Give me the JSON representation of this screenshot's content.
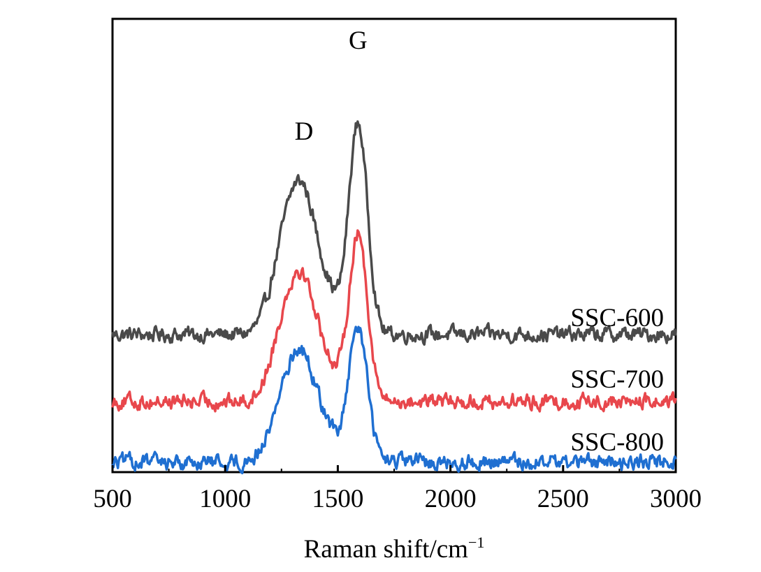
{
  "chart_data": {
    "type": "line",
    "title": "",
    "xlabel": "Raman shift/cm",
    "xlabel_superscript": "−1",
    "ylabel": "",
    "xlim": [
      500,
      3000
    ],
    "x_ticks": [
      500,
      1000,
      1500,
      2000,
      2500,
      3000
    ],
    "x_tick_labels": [
      "500",
      "1000",
      "1500",
      "2000",
      "2500",
      "3000"
    ],
    "y_ticks_visible": false,
    "grid": false,
    "peak_annotations": [
      {
        "label": "D",
        "x": 1350
      },
      {
        "label": "G",
        "x": 1590
      }
    ],
    "series": [
      {
        "name": "SSC-600",
        "color": "#4a4a4a",
        "label_position": "right",
        "baseline": 1.0,
        "d_peak": {
          "center": 1345,
          "height": 2.05
        },
        "g_peak": {
          "center": 1590,
          "height": 3.15
        }
      },
      {
        "name": "SSC-700",
        "color": "#e8474c",
        "label_position": "right",
        "baseline": 0.0,
        "d_peak": {
          "center": 1345,
          "height": 1.75
        },
        "g_peak": {
          "center": 1590,
          "height": 2.5
        }
      },
      {
        "name": "SSC-800",
        "color": "#1f6fd1",
        "label_position": "right",
        "baseline": -0.9,
        "d_peak": {
          "center": 1345,
          "height": 1.5
        },
        "g_peak": {
          "center": 1590,
          "height": 2.0
        }
      }
    ]
  }
}
